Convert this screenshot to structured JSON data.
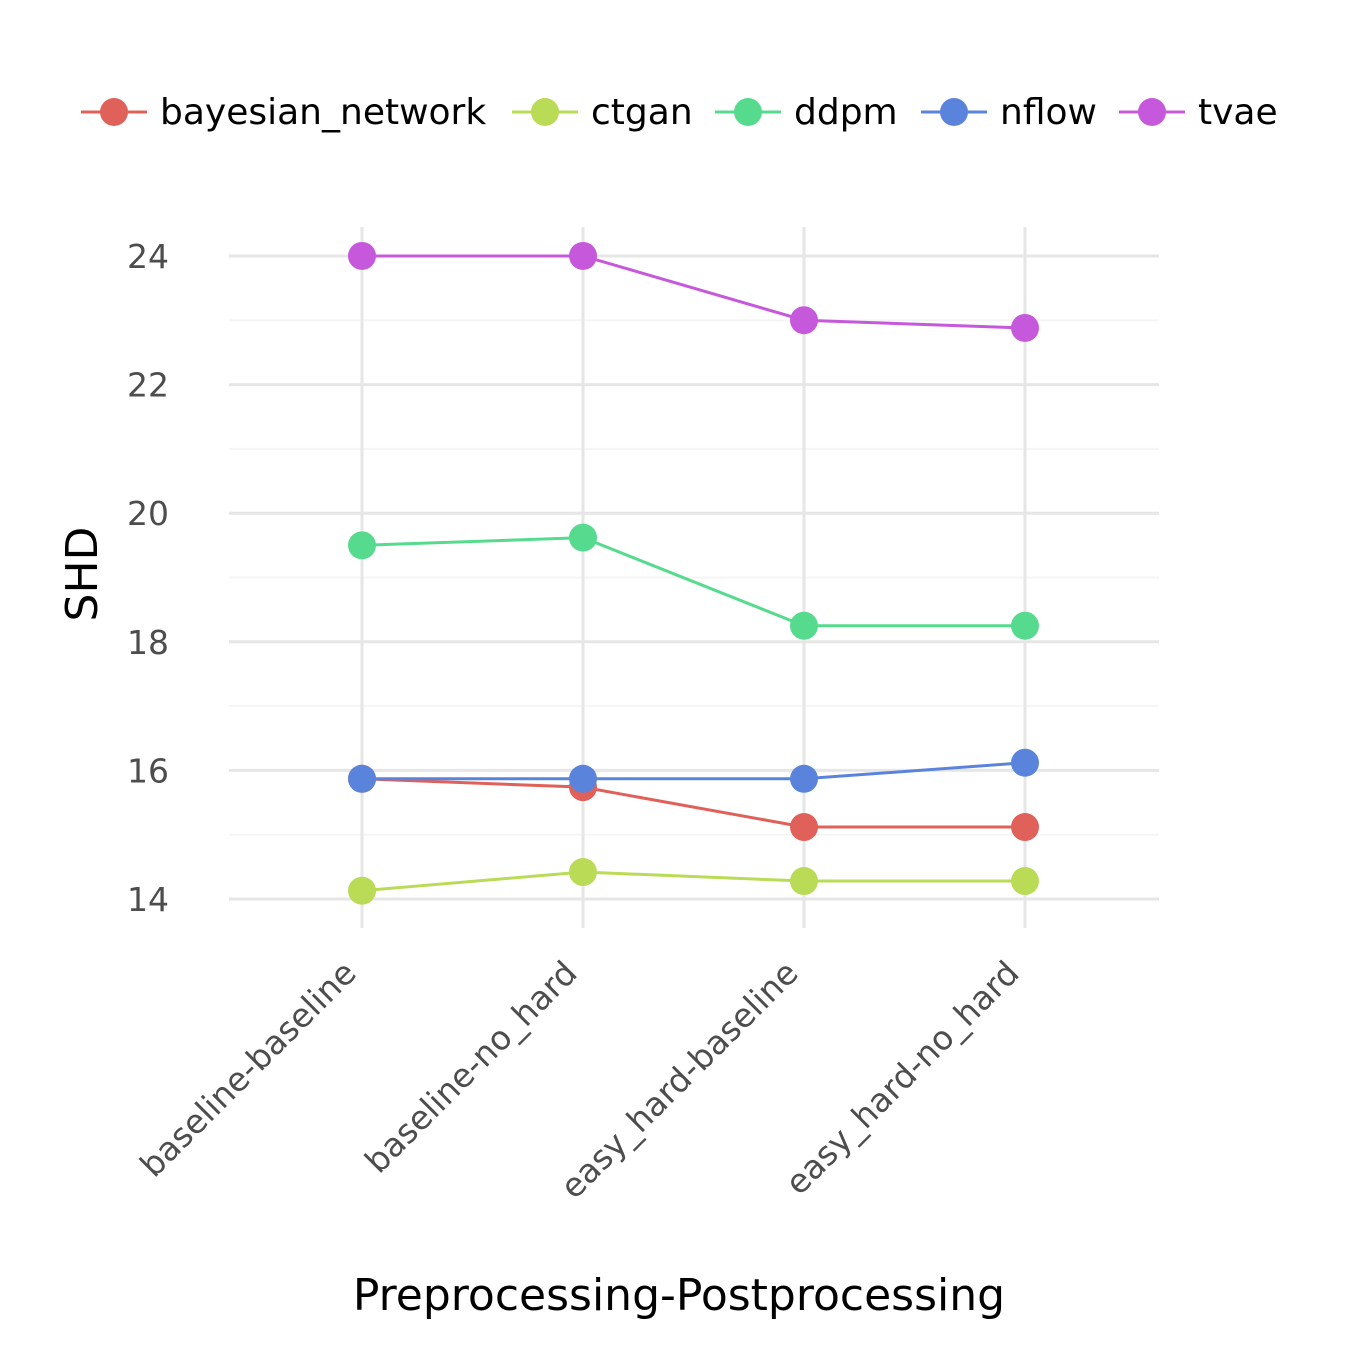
{
  "chart_data": {
    "type": "line",
    "xlabel": "Preprocessing-Postprocessing",
    "ylabel": "SHD",
    "categories": [
      "baseline-baseline",
      "baseline-no_hard",
      "easy_hard-baseline",
      "easy_hard-no_hard"
    ],
    "ylim": [
      13.55,
      24.45
    ],
    "yticks": [
      14,
      16,
      18,
      20,
      22,
      24
    ],
    "ytick_labels": [
      "14",
      "16",
      "18",
      "20",
      "22",
      "24"
    ],
    "grid": true,
    "legend_position": "top",
    "series": [
      {
        "name": "bayesian_network",
        "color": "#E0605A",
        "values": [
          15.87,
          15.74,
          15.12,
          15.12
        ]
      },
      {
        "name": "ctgan",
        "color": "#B9DB56",
        "values": [
          14.13,
          14.42,
          14.28,
          14.28
        ]
      },
      {
        "name": "ddpm",
        "color": "#56DB8E",
        "values": [
          19.5,
          19.62,
          18.25,
          18.25
        ]
      },
      {
        "name": "nflow",
        "color": "#5A84DB",
        "values": [
          15.87,
          15.87,
          15.87,
          16.12
        ]
      },
      {
        "name": "tvae",
        "color": "#C658DB",
        "values": [
          24.0,
          24.0,
          23.0,
          22.88
        ]
      }
    ]
  }
}
